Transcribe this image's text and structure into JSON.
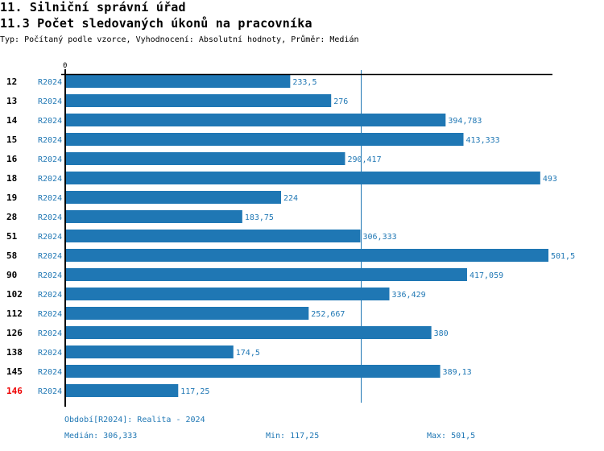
{
  "header": {
    "title": "11. Silniční správní úřad",
    "subtitle": "11.3 Počet sledovaných úkonů na pracovníka",
    "description": "Typ: Počítaný podle vzorce, Vyhodnocení: Absolutní hodnoty, Průměr: Medián"
  },
  "colors": {
    "bar": "#1f77b4",
    "highlight_label": "#ee0000",
    "axis": "#000000"
  },
  "chart_data": {
    "type": "bar",
    "orientation": "horizontal",
    "title": "11.3 Počet sledovaných úkonů na pracovníka",
    "xlabel": "",
    "ylabel": "",
    "x_tick_labels": [
      "0"
    ],
    "xlim": [
      0,
      506
    ],
    "grid": false,
    "legend": "none",
    "series_name": "R2024",
    "categories": [
      "12",
      "13",
      "14",
      "15",
      "16",
      "18",
      "19",
      "28",
      "51",
      "58",
      "90",
      "102",
      "112",
      "126",
      "138",
      "145",
      "146"
    ],
    "highlighted_category": "146",
    "values": [
      233.5,
      276,
      394.783,
      413.333,
      290.417,
      493,
      224,
      183.75,
      306.333,
      501.5,
      417.059,
      336.429,
      252.667,
      380,
      174.5,
      389.13,
      117.25
    ],
    "value_labels": [
      "233,5",
      "276",
      "394,783",
      "413,333",
      "290,417",
      "493",
      "224",
      "183,75",
      "306,333",
      "501,5",
      "417,059",
      "336,429",
      "252,667",
      "380",
      "174,5",
      "389,13",
      "117,25"
    ],
    "reference_line": {
      "name": "Medián",
      "value": 306.333
    }
  },
  "footer": {
    "period": "Období[R2024]: Realita - 2024",
    "median": "Medián: 306,333",
    "min": "Min: 117,25",
    "max": "Max: 501,5"
  }
}
